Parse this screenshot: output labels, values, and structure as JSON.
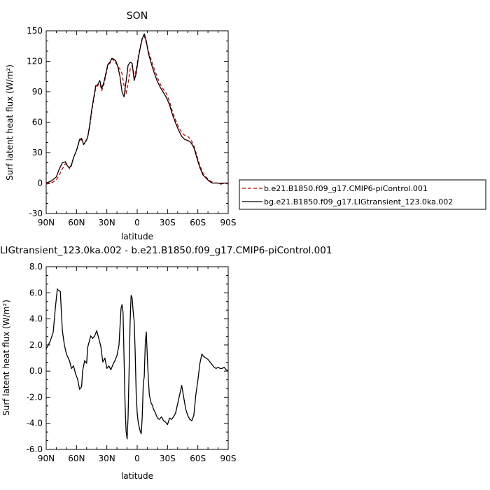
{
  "chart_data": [
    {
      "type": "line",
      "title": "SON",
      "xlabel": "latitude",
      "ylabel": "Surf latent heat flux (W/m²)",
      "x_tick_values": [
        90,
        60,
        30,
        0,
        -30,
        -60,
        -90
      ],
      "x_tick_labels": [
        "90N",
        "60N",
        "30N",
        "0",
        "30S",
        "60S",
        "90S"
      ],
      "xlim": [
        90,
        -90
      ],
      "ylim": [
        -30,
        150
      ],
      "y_ticks": [
        -30,
        0,
        30,
        60,
        90,
        120,
        150
      ],
      "y_tick_labels": [
        "-30",
        "0",
        "30",
        "60",
        "90",
        "120",
        "150"
      ],
      "grid": false,
      "legend_position": "right",
      "series": [
        {
          "name": "b.e21.B1850.f09_g17.CMIP6-piControl.001",
          "color": "#cc0000",
          "dash": "dashed",
          "x": [
            90,
            85,
            80,
            77,
            74,
            71,
            69,
            67,
            65,
            63,
            60,
            57,
            55,
            53,
            51,
            49,
            47,
            45,
            43,
            41,
            39,
            37,
            35,
            33,
            31,
            29,
            27,
            25,
            23,
            21,
            19,
            17,
            15,
            13,
            11,
            9,
            7,
            5,
            3,
            1,
            -1,
            -3,
            -5,
            -7,
            -9,
            -11,
            -13,
            -15,
            -17,
            -20,
            -23,
            -26,
            -29,
            -32,
            -35,
            -38,
            -41,
            -44,
            -47,
            -50,
            -53,
            -56,
            -59,
            -62,
            -65,
            -68,
            -71,
            -74,
            -77,
            -80,
            -83,
            -86,
            -90
          ],
          "y": [
            -1,
            0,
            3,
            8,
            14,
            19,
            18,
            14,
            17,
            25,
            32,
            42,
            43,
            38,
            40,
            45,
            55,
            70,
            82,
            94,
            96,
            98,
            91,
            97,
            106,
            116,
            118,
            122,
            121,
            118,
            115,
            112,
            108,
            96,
            88,
            98,
            112,
            116,
            104,
            112,
            124,
            134,
            143,
            145,
            138,
            130,
            124,
            118,
            112,
            104,
            97,
            92,
            88,
            80,
            70,
            62,
            55,
            50,
            47,
            46,
            43,
            37,
            27,
            17,
            10,
            6,
            3,
            1,
            0,
            0,
            0,
            0,
            -1
          ]
        },
        {
          "name": "bg.e21.B1850.f09_g17.LIGtransient_123.0ka.002",
          "color": "#000000",
          "dash": "solid",
          "x": [
            90,
            85,
            80,
            77,
            74,
            71,
            69,
            67,
            65,
            63,
            60,
            57,
            55,
            53,
            51,
            49,
            47,
            45,
            43,
            41,
            39,
            37,
            35,
            33,
            31,
            29,
            27,
            25,
            23,
            21,
            19,
            17,
            15,
            13,
            11,
            9,
            7,
            5,
            3,
            1,
            -1,
            -3,
            -5,
            -7,
            -9,
            -11,
            -13,
            -15,
            -17,
            -20,
            -23,
            -26,
            -29,
            -32,
            -35,
            -38,
            -41,
            -44,
            -47,
            -50,
            -53,
            -56,
            -59,
            -62,
            -65,
            -68,
            -71,
            -74,
            -77,
            -80,
            -83,
            -86,
            -90
          ],
          "y": [
            0,
            2,
            6,
            14,
            20,
            21,
            17,
            15,
            18,
            25,
            32,
            43,
            44,
            38,
            41,
            45,
            57,
            72,
            84,
            96,
            97,
            101,
            93,
            99,
            108,
            117,
            119,
            123,
            122,
            120,
            114,
            105,
            90,
            85,
            100,
            116,
            119,
            118,
            101,
            108,
            122,
            133,
            142,
            147,
            140,
            128,
            121,
            114,
            108,
            100,
            94,
            89,
            84,
            77,
            67,
            59,
            52,
            46,
            43,
            42,
            40,
            35,
            25,
            15,
            8,
            5,
            2,
            0,
            0,
            0,
            -1,
            0,
            0
          ]
        }
      ]
    },
    {
      "type": "line",
      "title": "LIGtransient_123.0ka.002 - b.e21.B1850.f09_g17.CMIP6-piControl.001",
      "xlabel": "latitude",
      "ylabel": "Surf latent heat flux (W/m²)",
      "x_tick_values": [
        90,
        60,
        30,
        0,
        -30,
        -60,
        -90
      ],
      "x_tick_labels": [
        "90N",
        "60N",
        "30N",
        "0",
        "30S",
        "60S",
        "90S"
      ],
      "xlim": [
        90,
        -90
      ],
      "ylim": [
        -6,
        8
      ],
      "y_ticks": [
        -6,
        -4,
        -2,
        0,
        2,
        4,
        6,
        8
      ],
      "y_tick_labels": [
        "-6.0",
        "-4.0",
        "-2.0",
        "0.0",
        "2.0",
        "4.0",
        "6.0",
        "8.0"
      ],
      "grid": false,
      "series": [
        {
          "color": "#000000",
          "x": [
            90,
            86,
            83,
            81,
            79,
            78,
            76,
            75,
            74,
            72,
            70,
            67,
            65,
            63,
            61,
            59,
            57,
            55,
            54,
            52,
            50,
            49,
            47,
            46,
            44,
            42,
            40,
            38,
            36,
            34,
            32,
            30,
            28,
            26,
            24,
            22,
            20,
            18,
            16,
            15,
            14,
            13,
            12,
            11,
            10,
            9,
            8,
            7,
            6,
            5,
            4,
            3,
            2,
            1,
            0,
            -1,
            -2,
            -3,
            -4,
            -5,
            -6,
            -7,
            -8,
            -9,
            -10,
            -11,
            -12,
            -13,
            -14,
            -15,
            -16,
            -18,
            -20,
            -22,
            -24,
            -26,
            -28,
            -30,
            -32,
            -34,
            -36,
            -38,
            -40,
            -42,
            -44,
            -46,
            -48,
            -50,
            -52,
            -54,
            -56,
            -58,
            -60,
            -62,
            -64,
            -66,
            -68,
            -70,
            -72,
            -74,
            -76,
            -78,
            -80,
            -82,
            -84,
            -86,
            -88,
            -90
          ],
          "y": [
            1.7,
            2.3,
            3.0,
            4.8,
            6.3,
            6.2,
            6.1,
            4.5,
            3.1,
            2.0,
            1.3,
            0.8,
            0.2,
            0.4,
            -0.2,
            -0.6,
            -1.4,
            -1.2,
            0.0,
            0.8,
            0.6,
            1.8,
            2.4,
            2.7,
            2.5,
            2.7,
            3.1,
            2.5,
            1.9,
            0.7,
            1.0,
            0.2,
            0.4,
            0.1,
            0.5,
            0.8,
            1.2,
            2.0,
            4.8,
            5.1,
            4.5,
            1.0,
            -2.6,
            -4.6,
            -5.2,
            -3.5,
            0.0,
            3.8,
            5.8,
            5.6,
            4.6,
            3.8,
            1.5,
            -1.8,
            -3.2,
            -3.9,
            -4.3,
            -4.6,
            -4.8,
            -3.5,
            -1.0,
            -0.4,
            2.2,
            3.0,
            1.2,
            -0.6,
            -1.8,
            -2.2,
            -2.5,
            -2.6,
            -2.9,
            -3.2,
            -3.6,
            -3.7,
            -3.5,
            -3.8,
            -3.9,
            -4.1,
            -3.6,
            -3.7,
            -3.5,
            -3.2,
            -2.5,
            -1.8,
            -1.1,
            -2.0,
            -2.9,
            -3.4,
            -3.7,
            -3.8,
            -3.4,
            -1.8,
            -0.7,
            0.6,
            1.3,
            1.1,
            1.0,
            0.9,
            0.7,
            0.5,
            0.3,
            0.2,
            0.3,
            0.2,
            0.2,
            0.3,
            0.1,
            0.0
          ]
        }
      ]
    }
  ]
}
